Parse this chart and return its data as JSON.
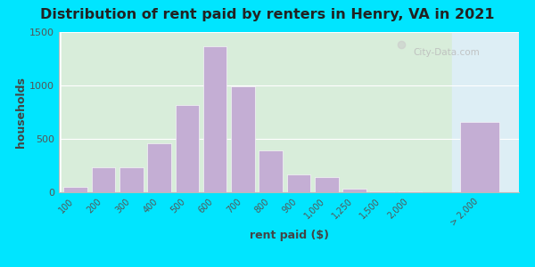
{
  "title": "Distribution of rent paid by renters in Henry, VA in 2021",
  "xlabel": "rent paid ($)",
  "ylabel": "households",
  "bar_labels": [
    "100",
    "200",
    "300",
    "400",
    "500",
    "600",
    "700",
    "800",
    "900",
    "1,000",
    "1,250",
    "1,500",
    "2,000",
    "> 2,000"
  ],
  "bar_values": [
    50,
    230,
    230,
    460,
    820,
    1370,
    990,
    390,
    170,
    140,
    30,
    5,
    5,
    660
  ],
  "bar_color": "#c4aed4",
  "background_outer": "#00e5ff",
  "background_left": "#d8edda",
  "background_right": "#ddeef5",
  "ylim": [
    0,
    1500
  ],
  "yticks": [
    0,
    500,
    1000,
    1500
  ],
  "title_fontsize": 11.5,
  "axis_label_fontsize": 9,
  "watermark_text": "City-Data.com"
}
